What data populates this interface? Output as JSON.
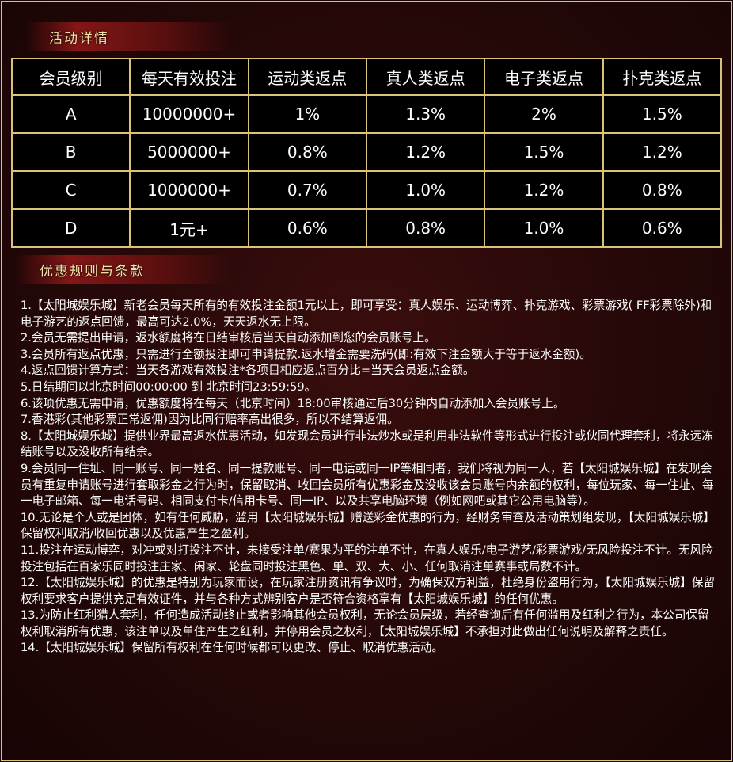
{
  "section1": {
    "title": "活动详情"
  },
  "table": {
    "headers": [
      "会员级别",
      "每天有效投注",
      "运动类返点",
      "真人类返点",
      "电子类返点",
      "扑克类返点"
    ],
    "rows": [
      [
        "A",
        "10000000+",
        "1%",
        "1.3%",
        "2%",
        "1.5%"
      ],
      [
        "B",
        "5000000+",
        "0.8%",
        "1.2%",
        "1.5%",
        "1.2%"
      ],
      [
        "C",
        "1000000+",
        "0.7%",
        "1.0%",
        "1.2%",
        "0.8%"
      ],
      [
        "D",
        "1元+",
        "0.6%",
        "0.8%",
        "1.0%",
        "0.6%"
      ]
    ]
  },
  "section2": {
    "title": "优惠规则与条款"
  },
  "rules": [
    "1.【太阳城娱乐城】新老会员每天所有的有效投注金额1元以上，即可享受：真人娱乐、运动博弈、扑克游戏、彩票游戏( FF彩票除外)和电子游艺的返点回馈，最高可达2.0%，天天返水无上限。",
    "2.会员无需提出申请，返水额度将在日结审核后当天自动添加到您的会员账号上。",
    "3.会员所有返点优惠，只需进行全额投注即可申请提款.返水增金需要洗码(即:有效下注金额大于等于返水金额)。",
    "4.返点回馈计算方式：当天各游戏有效投注*各项目相应返点百分比=当天会员返点金额。",
    "5.日结期间以北京时间00:00:00 到 北京时间23:59:59。",
    "6.该项优惠无需申请，优惠额度将在每天（北京时间）18:00审核通过后30分钟内自动添加入会员账号上。",
    "7.香港彩(其他彩票正常返佣)因为比同行赔率高出很多，所以不结算返佣。",
    "8.【太阳城娱乐城】提供业界最高返水优惠活动，如发现会员进行非法炒水或是利用非法软件等形式进行投注或伙同代理套利，将永远冻结账号以及没收所有结余。",
    "9.会员同一住址、同一账号、同一姓名、同一提款账号、同一电话或同一IP等相同者，我们将视为同一人，若【太阳城娱乐城】在发现会员有重复申请账号进行套取彩金之行为时，保留取消、收回会员所有优惠彩金及没收该会员账号内余额的权利，每位玩家、每一住址、每一电子邮箱、每一电话号码、相同支付卡/信用卡号、同一IP、以及共享电脑环境（例如网吧或其它公用电脑等）。",
    "10.无论是个人或是团体，如有任何威胁，滥用【太阳城娱乐城】赠送彩金优惠的行为，经财务审查及活动策划组发现，【太阳城娱乐城】保留权利取消/收回优惠以及优惠产生之盈利。",
    "11.投注在运动博弈，对冲或对打投注不计，未接受注单/赛果为平的注单不计，在真人娱乐/电子游艺/彩票游戏/无风险投注不计。无风险投注包括在百家乐同时投注庄家、闲家、轮盘同时投注黑色、单、双、大、小、任何取消注单赛事或局数不计。",
    "12.【太阳城娱乐城】的优惠是特别为玩家而设，在玩家注册资讯有争议时，为确保双方利益，杜绝身份盗用行为，【太阳城娱乐城】保留权利要求客户提供充足有效证件，并与各种方式辨别客户是否符合资格享有【太阳城娱乐城】的任何优惠。",
    "13.为防止红利猎人套利，任何造成活动终止或者影响其他会员权利，无论会员层级，若经查询后有任何滥用及红利之行为，本公司保留权利取消所有优惠，该注单以及单住产生之红利，并停用会员之权利，【太阳城娱乐城】不承担对此做出任何说明及解释之责任。",
    "14.【太阳城娱乐城】保留所有权利在任何时候都可以更改、停止、取消优惠活动。"
  ]
}
